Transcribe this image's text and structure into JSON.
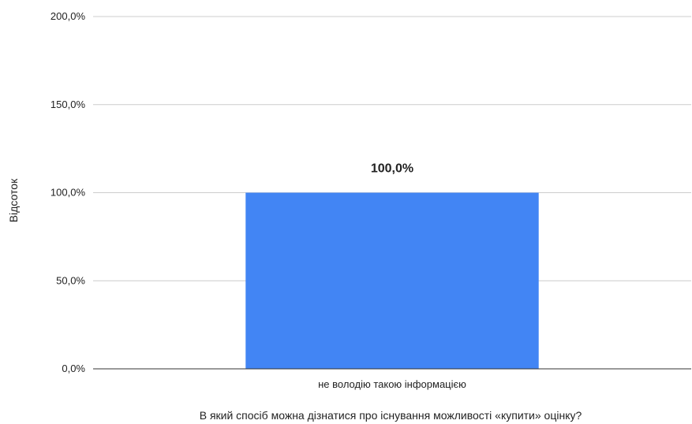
{
  "chart_data": {
    "type": "bar",
    "title": "",
    "xlabel": "В який спосіб можна дізнатися про існування можливості «купити» оцінку?",
    "ylabel": "Відсоток",
    "categories": [
      "не володію такою інформацією"
    ],
    "values": [
      100.0
    ],
    "data_labels": [
      "100,0%"
    ],
    "ylim": [
      0,
      200
    ],
    "yticks": [
      0,
      50,
      100,
      150,
      200
    ],
    "ytick_labels": [
      "0,0%",
      "50,0%",
      "100,0%",
      "150,0%",
      "200,0%"
    ],
    "grid": true,
    "legend": "none",
    "colors": {
      "bar": "#4285F4",
      "grid": "#CCCCCC",
      "axis": "#333333"
    }
  }
}
